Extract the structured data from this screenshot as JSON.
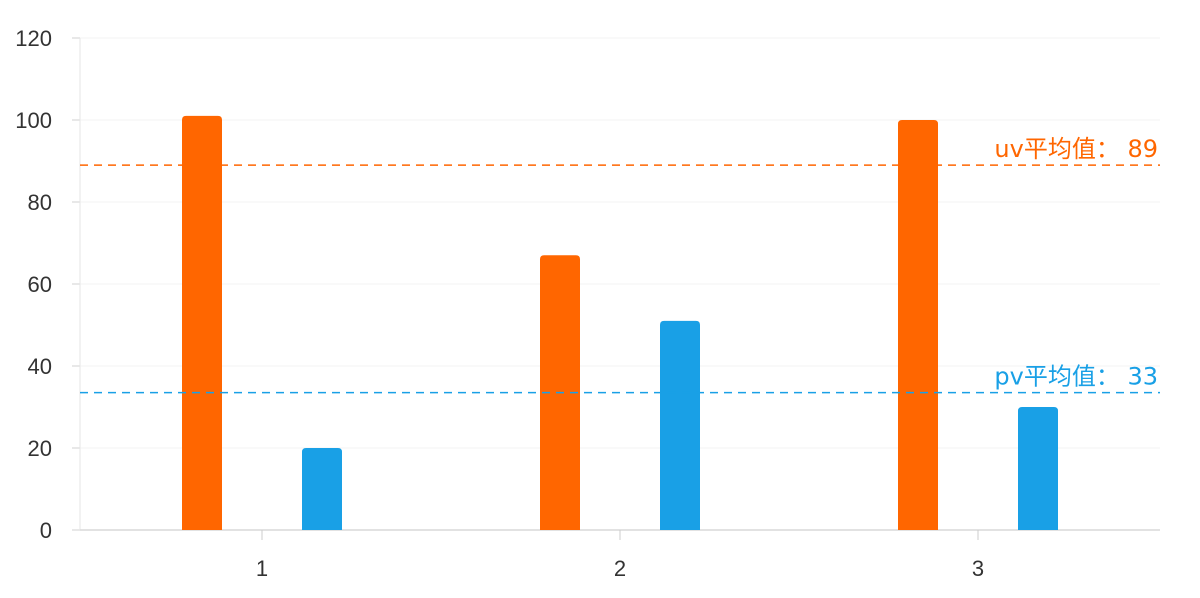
{
  "chart_data": {
    "type": "bar",
    "title": "",
    "xlabel": "",
    "ylabel": "",
    "categories": [
      "1",
      "2",
      "3"
    ],
    "ylim": [
      0,
      120
    ],
    "yticks": [
      0,
      20,
      40,
      60,
      80,
      100,
      120
    ],
    "grid": true,
    "legend": "none",
    "series": [
      {
        "color": "#ff6600",
        "values": [
          101,
          67,
          100
        ]
      },
      {
        "color": "#19a0e6",
        "values": [
          20,
          51,
          30
        ]
      }
    ],
    "reference_lines": [
      {
        "value": 89,
        "label": "uv平均值： 89",
        "color": "#ff6600",
        "style": "dashed"
      },
      {
        "value": 33.5,
        "label": "pv平均值： 33",
        "color": "#19a0e6",
        "style": "dashed"
      }
    ]
  }
}
